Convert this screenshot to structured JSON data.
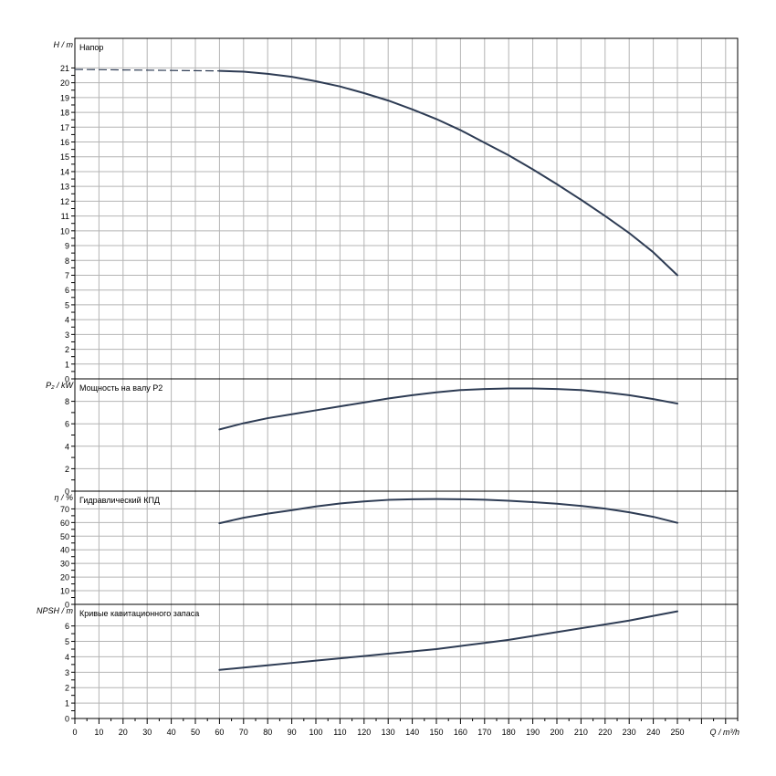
{
  "x_axis": {
    "label": "Q / m³/h",
    "range": [
      0,
      275
    ],
    "ticks": [
      0,
      10,
      20,
      30,
      40,
      50,
      60,
      70,
      80,
      90,
      100,
      110,
      120,
      130,
      140,
      150,
      160,
      170,
      180,
      190,
      200,
      210,
      220,
      230,
      240,
      250
    ]
  },
  "chart_data": [
    {
      "type": "line",
      "title": "Напор",
      "ylabel": "H / m",
      "ylim": [
        0,
        23
      ],
      "yticks": [
        0,
        1,
        2,
        3,
        4,
        5,
        6,
        7,
        8,
        9,
        10,
        11,
        12,
        13,
        14,
        15,
        16,
        17,
        18,
        19,
        20,
        21
      ],
      "grid": true,
      "dashed_segment": {
        "x": [
          0,
          60
        ],
        "y": [
          20.9,
          20.8
        ]
      },
      "series": [
        {
          "x": [
            60,
            70,
            80,
            90,
            100,
            110,
            120,
            130,
            140,
            150,
            160,
            170,
            180,
            190,
            200,
            210,
            220,
            230,
            240,
            250
          ],
          "y": [
            20.8,
            20.75,
            20.6,
            20.4,
            20.1,
            19.75,
            19.3,
            18.8,
            18.2,
            17.55,
            16.8,
            15.95,
            15.1,
            14.15,
            13.15,
            12.1,
            11.0,
            9.85,
            8.55,
            7.0
          ]
        }
      ]
    },
    {
      "type": "line",
      "title": "Мощность на валу P2",
      "ylabel": "P₂ / kW",
      "ylim": [
        0,
        10
      ],
      "yticks": [
        0,
        2,
        4,
        6,
        8
      ],
      "grid": true,
      "series": [
        {
          "x": [
            60,
            70,
            80,
            90,
            100,
            110,
            120,
            130,
            140,
            150,
            160,
            170,
            180,
            190,
            200,
            210,
            220,
            230,
            240,
            250
          ],
          "y": [
            5.5,
            6.05,
            6.5,
            6.85,
            7.2,
            7.55,
            7.9,
            8.25,
            8.55,
            8.8,
            9.0,
            9.1,
            9.15,
            9.15,
            9.1,
            9.0,
            8.8,
            8.55,
            8.2,
            7.8
          ]
        }
      ]
    },
    {
      "type": "line",
      "title": "Гидравлический КПД",
      "ylabel": "η / %",
      "ylim": [
        0,
        83
      ],
      "yticks": [
        0,
        10,
        20,
        30,
        40,
        50,
        60,
        70
      ],
      "grid": true,
      "series": [
        {
          "x": [
            60,
            70,
            80,
            90,
            100,
            110,
            120,
            130,
            140,
            150,
            160,
            170,
            180,
            190,
            200,
            210,
            220,
            230,
            240,
            250
          ],
          "y": [
            59.5,
            63.5,
            66.5,
            69,
            71.8,
            74,
            75.5,
            76.6,
            77.1,
            77.2,
            77.1,
            76.7,
            76,
            75,
            73.8,
            72.2,
            70.2,
            67.5,
            64.2,
            59.8
          ]
        }
      ]
    },
    {
      "type": "line",
      "title": "Кривые кавитационного запаса",
      "ylabel": "NPSH / m",
      "ylim": [
        0,
        7.4
      ],
      "yticks": [
        0,
        1,
        2,
        3,
        4,
        5,
        6
      ],
      "grid": true,
      "series": [
        {
          "x": [
            60,
            70,
            80,
            90,
            100,
            110,
            120,
            130,
            140,
            150,
            160,
            170,
            180,
            190,
            200,
            210,
            220,
            230,
            240,
            250
          ],
          "y": [
            3.15,
            3.3,
            3.45,
            3.6,
            3.75,
            3.9,
            4.05,
            4.2,
            4.35,
            4.5,
            4.7,
            4.9,
            5.1,
            5.35,
            5.6,
            5.85,
            6.1,
            6.35,
            6.65,
            6.95
          ]
        }
      ]
    }
  ],
  "colors": {
    "curve": "#2e3c54",
    "grid": "#b4b4b4",
    "axis": "#000000"
  }
}
